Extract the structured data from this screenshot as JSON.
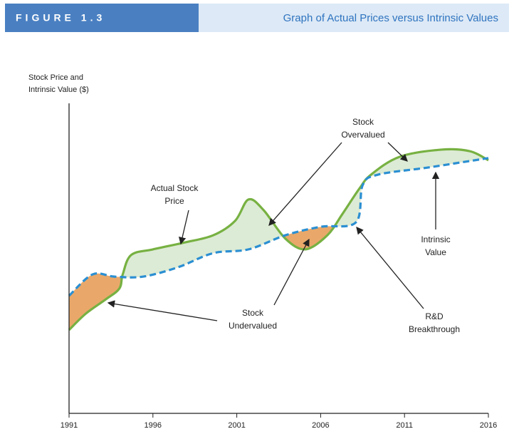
{
  "chart_data": {
    "type": "line",
    "figure_label": "FIGURE 1.3",
    "title": "Graph of Actual Prices versus Intrinsic Values",
    "y_label": [
      "Stock Price and",
      "Intrinsic Value ($)"
    ],
    "xlim": [
      1991,
      2016
    ],
    "xticks": [
      1991,
      1996,
      2001,
      2006,
      2011,
      2016
    ],
    "ylim": [
      0,
      100
    ],
    "series": [
      {
        "name": "Actual Stock Price",
        "color": "#77b142",
        "x": [
          1991,
          1992,
          1993.2,
          1994,
          1994.2,
          1994.7,
          1996,
          1997.9,
          1999.6,
          2000.9,
          2001.7,
          2002.6,
          2003.9,
          2005.1,
          2006.4,
          2007.3,
          2008.3,
          2009,
          2010.7,
          2013.2,
          2014.9,
          2016
        ],
        "values": [
          26.6,
          31.8,
          36.4,
          39.8,
          44.3,
          50.5,
          52.3,
          54.5,
          56.8,
          61.4,
          68.2,
          64.8,
          55.7,
          52.3,
          56.8,
          63.6,
          71.6,
          76.1,
          81.8,
          84.1,
          83.6,
          80.7
        ]
      },
      {
        "name": "Intrinsic Value",
        "color": "#2b8fd2",
        "x": [
          1991,
          1992.4,
          1993.7,
          1995.4,
          1997.5,
          1999.6,
          2001.7,
          2003.9,
          2006,
          2008.1,
          2008.5,
          2009.4,
          2012.4,
          2016
        ],
        "values": [
          37.5,
          44.3,
          43.6,
          43.6,
          46.6,
          51.1,
          52.3,
          56.8,
          59.5,
          60.9,
          72.7,
          76.1,
          78.4,
          81.4
        ]
      }
    ],
    "overvalued_color": "#dcebd5",
    "undervalued_color": "#e9a86a",
    "annotations": [
      {
        "lines": [
          "Actual Stock",
          "Price"
        ]
      },
      {
        "lines": [
          "Stock",
          "Overvalued"
        ]
      },
      {
        "lines": [
          "Intrinsic",
          "Value"
        ]
      },
      {
        "lines": [
          "Stock",
          "Undervalued"
        ]
      },
      {
        "lines": [
          "R&D",
          "Breakthrough"
        ]
      }
    ]
  }
}
